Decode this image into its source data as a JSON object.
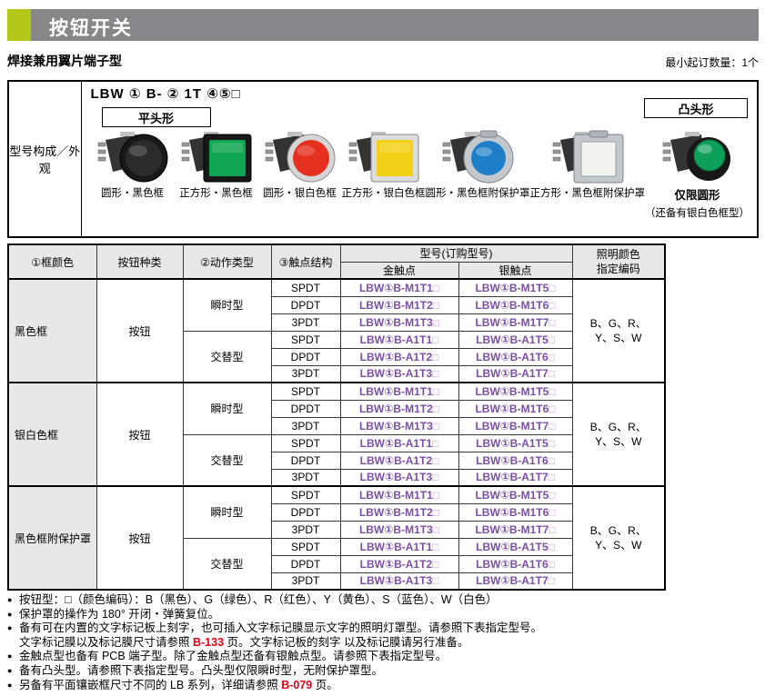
{
  "header": {
    "title": "按钮开关"
  },
  "subheader": {
    "left": "焊接兼用翼片端子型",
    "right": "最小起订数量：1个"
  },
  "overview": {
    "row_label": "型号构成／外观",
    "model_format": "LBW ① B- ② 1T ④⑤□",
    "flat_head_label": "平头形",
    "raised_head_label": "凸头形",
    "products": [
      {
        "id": "round-black-frame",
        "caption": "圆形・黑色框",
        "shape": "round-flat",
        "color": "#2b2b2b",
        "frame": "dark"
      },
      {
        "id": "square-black-frame",
        "caption": "正方形・黑色框",
        "shape": "square-flat",
        "color": "#0fa552",
        "frame": "dark"
      },
      {
        "id": "round-silver-frame",
        "caption": "圆形・银白色框",
        "shape": "round-flat",
        "color": "#e53020",
        "frame": "silver"
      },
      {
        "id": "square-silver-frame",
        "caption": "正方形・银白色框",
        "shape": "square-flat",
        "color": "#f2d018",
        "frame": "silver"
      },
      {
        "id": "round-guard",
        "caption": "圆形・黑色框附保护罩",
        "shape": "round-guard",
        "color": "#1e7ec8",
        "frame": "dark"
      },
      {
        "id": "square-guard",
        "caption": "正方形・黑色框附保护罩",
        "shape": "square-guard",
        "color": "#f2f2ee",
        "frame": "dark"
      },
      {
        "id": "round-raised",
        "caption": "仅限圆形",
        "shape": "round-raised",
        "color": "#0ca05a",
        "frame": "dark",
        "bold_caption": true,
        "note": "（还备有银白色框型）"
      }
    ]
  },
  "table": {
    "col_headers": {
      "frame_color": "①框颜色",
      "button_kind": "按钮种类",
      "action_type": "②动作类型",
      "contact_structure": "③触点结构",
      "model_group": "型号(订购型号)",
      "gold_contact": "金触点",
      "silver_contact": "银触点",
      "illumination_line1": "照明颜色",
      "illumination_line2": "指定编码"
    },
    "groups": [
      {
        "frame_color": "黑色框",
        "button_kind": "按钮",
        "illumination_lines": [
          "B、G、R、",
          "Y、S、W"
        ],
        "subgroups": [
          {
            "action_type": "瞬时型",
            "rows": [
              {
                "contact": "SPDT",
                "gold": "LBW①B-M1T1",
                "silver": "LBW①B-M1T5",
                "suffix": "□"
              },
              {
                "contact": "DPDT",
                "gold": "LBW①B-M1T2",
                "silver": "LBW①B-M1T6",
                "suffix": "□"
              },
              {
                "contact": "3PDT",
                "gold": "LBW①B-M1T3",
                "silver": "LBW①B-M1T7",
                "suffix": "□"
              }
            ]
          },
          {
            "action_type": "交替型",
            "rows": [
              {
                "contact": "SPDT",
                "gold": "LBW①B-A1T1",
                "silver": "LBW①B-A1T5",
                "suffix": "□"
              },
              {
                "contact": "DPDT",
                "gold": "LBW①B-A1T2",
                "silver": "LBW①B-A1T6",
                "suffix": "□"
              },
              {
                "contact": "3PDT",
                "gold": "LBW①B-A1T3",
                "silver": "LBW①B-A1T7",
                "suffix": "□"
              }
            ]
          }
        ]
      },
      {
        "frame_color": "银白色框",
        "button_kind": "按钮",
        "illumination_lines": [
          "B、G、R、",
          "Y、S、W"
        ],
        "subgroups": [
          {
            "action_type": "瞬时型",
            "rows": [
              {
                "contact": "SPDT",
                "gold": "LBW①B-M1T1",
                "silver": "LBW①B-M1T5",
                "suffix": "□"
              },
              {
                "contact": "DPDT",
                "gold": "LBW①B-M1T2",
                "silver": "LBW①B-M1T6",
                "suffix": "□"
              },
              {
                "contact": "3PDT",
                "gold": "LBW①B-M1T3",
                "silver": "LBW①B-M1T7",
                "suffix": "□"
              }
            ]
          },
          {
            "action_type": "交替型",
            "rows": [
              {
                "contact": "SPDT",
                "gold": "LBW①B-A1T1",
                "silver": "LBW①B-A1T5",
                "suffix": "□"
              },
              {
                "contact": "DPDT",
                "gold": "LBW①B-A1T2",
                "silver": "LBW①B-A1T6",
                "suffix": "□"
              },
              {
                "contact": "3PDT",
                "gold": "LBW①B-A1T3",
                "silver": "LBW①B-A1T7",
                "suffix": "□"
              }
            ]
          }
        ]
      },
      {
        "frame_color": "黑色框附保护罩",
        "button_kind": "按钮",
        "illumination_lines": [
          "B、G、R、",
          "Y、S、W"
        ],
        "subgroups": [
          {
            "action_type": "瞬时型",
            "rows": [
              {
                "contact": "SPDT",
                "gold": "LBW①B-M1T1",
                "silver": "LBW①B-M1T5",
                "suffix": "□"
              },
              {
                "contact": "DPDT",
                "gold": "LBW①B-M1T2",
                "silver": "LBW①B-M1T6",
                "suffix": "□"
              },
              {
                "contact": "3PDT",
                "gold": "LBW①B-M1T3",
                "silver": "LBW①B-M1T7",
                "suffix": "□"
              }
            ]
          },
          {
            "action_type": "交替型",
            "rows": [
              {
                "contact": "SPDT",
                "gold": "LBW①B-A1T1",
                "silver": "LBW①B-A1T5",
                "suffix": "□"
              },
              {
                "contact": "DPDT",
                "gold": "LBW①B-A1T2",
                "silver": "LBW①B-A1T6",
                "suffix": "□"
              },
              {
                "contact": "3PDT",
                "gold": "LBW①B-A1T3",
                "silver": "LBW①B-A1T7",
                "suffix": "□"
              }
            ]
          }
        ]
      }
    ]
  },
  "notes_bullet": "●",
  "notes": [
    {
      "segments": [
        {
          "t": "按钮型：□（颜色编码）：B（黑色）、G（绿色）、R（红色）、Y（黄色）、S（蓝色）、W（白色）"
        }
      ]
    },
    {
      "segments": [
        {
          "t": "保护罩的操作为 180° 开闭・弹簧复位。"
        }
      ]
    },
    {
      "segments": [
        {
          "t": "备有可在内置的文字标记板上刻字，也可插入文字标记膜显示文字的照明灯罩型。请参照下表指定型号。"
        },
        {
          "br": true
        },
        {
          "t": "文字标记膜以及标记膜尺寸请参照 "
        },
        {
          "t": "B-133",
          "red": true
        },
        {
          "t": " 页。文字标记板的刻字 以及标记膜请另行准备。"
        }
      ]
    },
    {
      "segments": [
        {
          "t": "金触点型也备有 PCB 端子型。除了金触点型还备有银触点型。请参照下表指定型号。"
        }
      ]
    },
    {
      "segments": [
        {
          "t": "备有凸头型。请参照下表指定型号。凸头型仅限瞬时型，无附保护罩型。"
        }
      ]
    },
    {
      "segments": [
        {
          "t": "另备有平面镶嵌框尺寸不同的 LB 系列，详细请参照 "
        },
        {
          "t": "B-079",
          "red": true
        },
        {
          "t": " 页。"
        }
      ]
    }
  ],
  "colors": {
    "accent_green": "#b3c61a",
    "header_gray": "#87878a",
    "table_header_bg": "#e8e8e8",
    "model_purple": "#7b4fa6",
    "model_suffix_purple": "#c9a2d8",
    "ref_red": "#e60012"
  }
}
